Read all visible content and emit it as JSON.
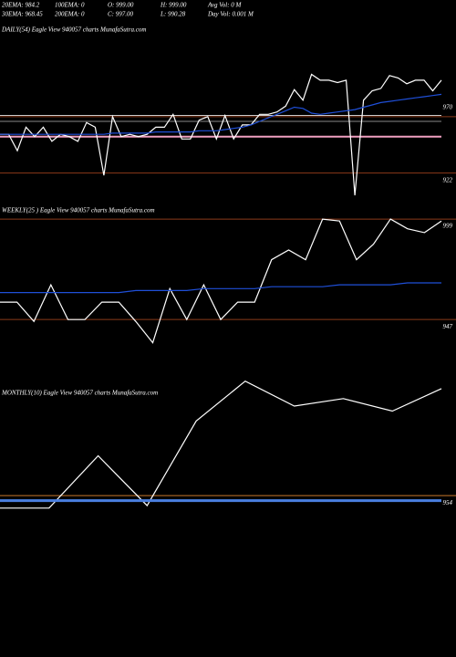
{
  "header": {
    "stats": [
      [
        "20EMA: 984.2",
        "100EMA: 0",
        "O: 999.00",
        "H: 999.00",
        "Avg Vol: 0  M"
      ],
      [
        "30EMA: 968.45",
        "200EMA: 0",
        "C: 997.00",
        "L: 990.28",
        "Day Vol: 0.001 M"
      ]
    ]
  },
  "chart_data": [
    {
      "type": "line",
      "title": "DAILY(54) Eagle  View  940057 charts MunafaSutra.com",
      "categories": [
        null,
        null,
        null,
        null,
        null,
        null,
        null,
        null,
        null,
        null,
        null,
        null,
        null,
        null,
        null,
        null,
        null,
        null,
        null,
        null,
        null,
        null,
        null,
        null,
        null,
        null,
        null,
        null,
        null,
        null,
        null,
        null,
        null,
        null,
        null,
        null,
        null,
        null,
        null,
        null,
        null,
        null,
        null,
        null,
        null,
        null,
        null,
        null,
        null,
        null,
        null,
        null
      ],
      "series": [
        {
          "color": "#ffffff",
          "values": [
            955,
            955,
            941,
            961,
            953,
            961,
            949,
            955,
            953,
            949,
            965,
            961,
            920,
            970,
            953,
            955,
            953,
            955,
            961,
            961,
            972,
            951,
            951,
            967,
            970,
            951,
            971,
            951,
            963,
            963,
            972,
            972,
            974,
            979,
            993,
            984,
            1006,
            1001,
            1001,
            999,
            1001,
            903,
            984,
            992,
            994,
            1005,
            1003,
            998,
            1001,
            1001,
            992,
            1001
          ]
        },
        {
          "color": "#1f4fd8",
          "values": [
            955,
            955,
            955,
            955,
            955,
            955,
            955,
            955,
            955,
            955,
            955,
            955,
            955,
            956,
            956,
            956,
            956,
            956,
            957,
            957,
            957,
            957,
            957,
            958,
            958,
            958,
            959,
            960,
            961,
            963,
            966,
            969,
            972,
            975,
            978,
            977,
            973,
            972,
            973,
            974,
            975,
            976,
            978,
            980,
            982,
            983,
            984,
            985,
            986,
            987,
            988,
            989
          ]
        }
      ],
      "reference_lines": [
        {
          "value": 966,
          "color": "#888888"
        },
        {
          "value": 971,
          "color": "#cccccc"
        },
        {
          "value": 953,
          "color": "#f0a0c0"
        }
      ],
      "ylim": [
        879,
        1046
      ],
      "yticks": [
        970,
        922
      ],
      "grid_color": "#8b3a1a"
    },
    {
      "type": "line",
      "title": "WEEKLY(25                ) Eagle  View  940057 charts MunafaSutra.com",
      "categories": [
        null,
        null,
        null,
        null,
        null,
        null,
        null,
        null,
        null,
        null,
        null,
        null,
        null,
        null,
        null,
        null,
        null,
        null,
        null,
        null,
        null,
        null,
        null,
        null,
        null,
        null,
        null
      ],
      "series": [
        {
          "color": "#ffffff",
          "values": [
            956,
            956,
            946,
            965,
            947,
            947,
            956,
            956,
            946,
            935,
            963,
            947,
            965,
            947,
            956,
            956,
            978,
            983,
            978,
            999,
            998,
            978,
            986,
            999,
            994,
            992,
            998
          ]
        },
        {
          "color": "#1f4fd8",
          "values": [
            961,
            961,
            961,
            961,
            961,
            961,
            961,
            961,
            962,
            962,
            962,
            962,
            963,
            963,
            963,
            963,
            964,
            964,
            964,
            964,
            965,
            965,
            965,
            965,
            966,
            966,
            966
          ]
        }
      ],
      "reference_lines": [],
      "ylim": [
        940,
        1000
      ],
      "yticks": [
        999,
        947
      ],
      "grid_color": "#8b3a1a"
    },
    {
      "type": "line",
      "title": "MONTHLY(10) Eagle  View  940057 charts MunafaSutra.com",
      "categories": [
        null,
        null,
        null,
        null,
        null,
        null,
        null,
        null,
        null,
        null
      ],
      "series": [
        {
          "color": "#ffffff",
          "values": [
            949,
            949,
            970,
            950,
            984,
            1000,
            990,
            993,
            988,
            997
          ]
        },
        {
          "color": "#4a7fe0",
          "values": [
            952,
            952,
            952,
            952,
            952,
            952,
            952,
            952,
            952,
            952
          ]
        }
      ],
      "reference_lines": [],
      "ylim": [
        946,
        1001
      ],
      "yticks": [
        954
      ],
      "grid_color": "#c8782a"
    }
  ]
}
